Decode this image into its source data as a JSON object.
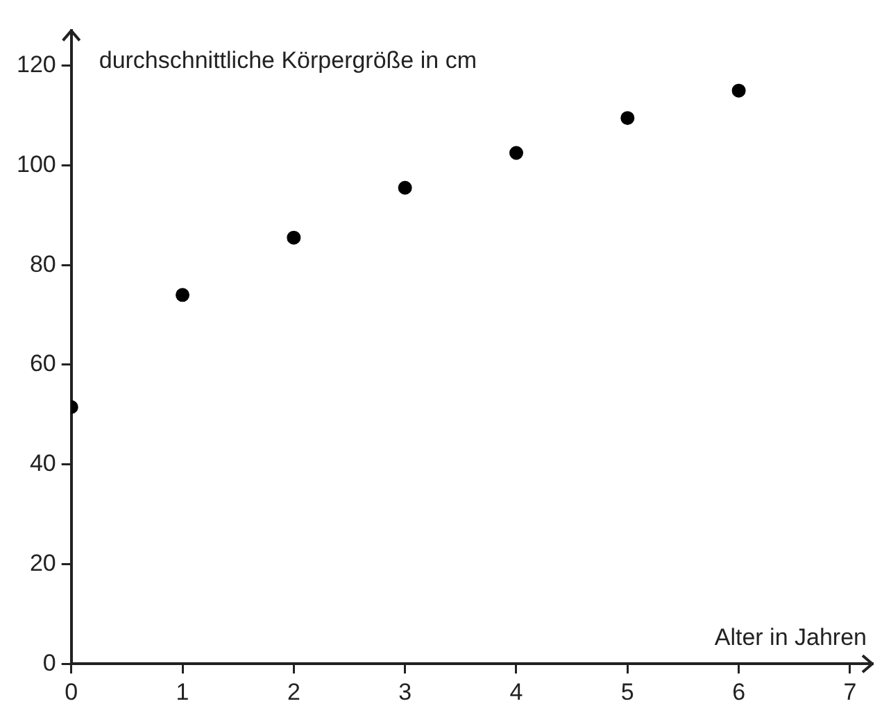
{
  "chart_data": {
    "type": "scatter",
    "xlabel": "Alter in Jahren",
    "ylabel": "durchschnittliche Körpergröße in cm",
    "x": [
      0,
      1,
      2,
      3,
      4,
      5,
      6
    ],
    "series": [
      {
        "color": "#000000",
        "values": [
          51.5,
          74,
          85.5,
          95.5,
          102.5,
          109.5,
          115
        ]
      }
    ],
    "xlim": [
      0,
      7.2
    ],
    "xticks": [
      0,
      1,
      2,
      3,
      4,
      5,
      6,
      7
    ],
    "ylim": [
      0,
      127
    ],
    "yticks": [
      0,
      20,
      40,
      60,
      80,
      100,
      120
    ],
    "grid": false,
    "legend": false,
    "marker": "circle"
  }
}
